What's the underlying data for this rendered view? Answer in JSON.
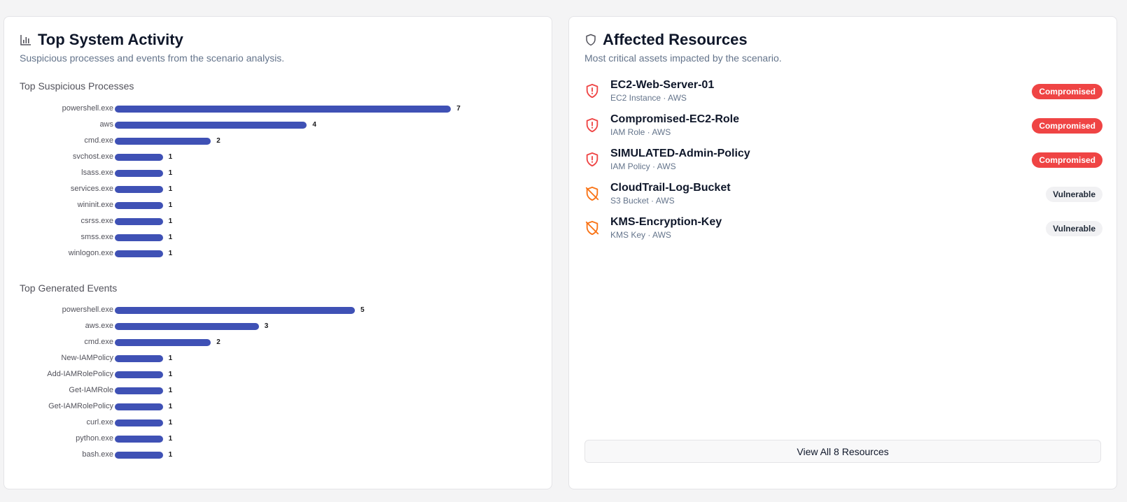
{
  "activity": {
    "title": "Top System Activity",
    "subtitle": "Suspicious processes and events from the scenario analysis.",
    "processes_title": "Top Suspicious Processes",
    "events_title": "Top Generated Events"
  },
  "resources": {
    "title": "Affected Resources",
    "subtitle": "Most critical assets impacted by the scenario.",
    "items": [
      {
        "name": "EC2-Web-Server-01",
        "meta": "EC2 Instance · AWS",
        "status": "Compromised"
      },
      {
        "name": "Compromised-EC2-Role",
        "meta": "IAM Role · AWS",
        "status": "Compromised"
      },
      {
        "name": "SIMULATED-Admin-Policy",
        "meta": "IAM Policy · AWS",
        "status": "Compromised"
      },
      {
        "name": "CloudTrail-Log-Bucket",
        "meta": "S3 Bucket · AWS",
        "status": "Vulnerable"
      },
      {
        "name": "KMS-Encryption-Key",
        "meta": "KMS Key · AWS",
        "status": "Vulnerable"
      }
    ],
    "view_all_label": "View All 8 Resources"
  },
  "colors": {
    "bar": "#3f51b5",
    "compromised": "#ef4444",
    "vulnerable_icon": "#f97316"
  },
  "chart_data": [
    {
      "type": "bar",
      "orientation": "horizontal",
      "title": "Top Suspicious Processes",
      "categories": [
        "powershell.exe",
        "aws",
        "cmd.exe",
        "svchost.exe",
        "lsass.exe",
        "services.exe",
        "wininit.exe",
        "csrss.exe",
        "smss.exe",
        "winlogon.exe"
      ],
      "values": [
        7,
        4,
        2,
        1,
        1,
        1,
        1,
        1,
        1,
        1
      ],
      "grid": false
    },
    {
      "type": "bar",
      "orientation": "horizontal",
      "title": "Top Generated Events",
      "categories": [
        "powershell.exe",
        "aws.exe",
        "cmd.exe",
        "New-IAMPolicy",
        "Add-IAMRolePolicy",
        "Get-IAMRole",
        "Get-IAMRolePolicy",
        "curl.exe",
        "python.exe",
        "bash.exe"
      ],
      "values": [
        5,
        3,
        2,
        1,
        1,
        1,
        1,
        1,
        1,
        1
      ],
      "grid": false
    }
  ]
}
